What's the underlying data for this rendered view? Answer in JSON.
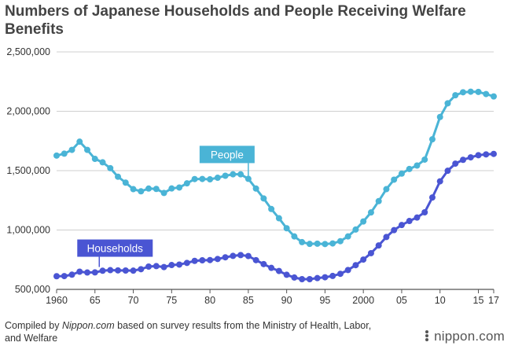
{
  "title": "Numbers of Japanese Households and People Receiving Welfare Benefits",
  "footer": {
    "prefix": "Compiled by ",
    "source": "Nippon.com",
    "suffix": " based on survey results from the Ministry of Health, Labor, and Welfare"
  },
  "logo": "nippon.com",
  "colors": {
    "people": "#4ab4d6",
    "households": "#4a55d3",
    "grid": "#cfcfcf",
    "axis": "#555555"
  },
  "chart_data": {
    "type": "line",
    "title": "Numbers of Japanese Households and People Receiving Welfare Benefits",
    "xlabel": "",
    "ylabel": "",
    "x": [
      1960,
      1961,
      1962,
      1963,
      1964,
      1965,
      1966,
      1967,
      1968,
      1969,
      1970,
      1971,
      1972,
      1973,
      1974,
      1975,
      1976,
      1977,
      1978,
      1979,
      1980,
      1981,
      1982,
      1983,
      1984,
      1985,
      1986,
      1987,
      1988,
      1989,
      1990,
      1991,
      1992,
      1993,
      1994,
      1995,
      1996,
      1997,
      1998,
      1999,
      2000,
      2001,
      2002,
      2003,
      2004,
      2005,
      2006,
      2007,
      2008,
      2009,
      2010,
      2011,
      2012,
      2013,
      2014,
      2015,
      2016,
      2017
    ],
    "xlim": [
      1960,
      2017
    ],
    "ylim": [
      500000,
      2500000
    ],
    "yticks": [
      500000,
      1000000,
      1500000,
      2000000,
      2500000
    ],
    "ytick_labels": [
      "500,000",
      "1,000,000",
      "1,500,000",
      "2,000,000",
      "2,500,000"
    ],
    "xticks": [
      1960,
      1965,
      1970,
      1975,
      1980,
      1985,
      1990,
      1995,
      2000,
      2005,
      2010,
      2015,
      2017
    ],
    "xtick_labels": [
      "1960",
      "65",
      "70",
      "75",
      "80",
      "85",
      "90",
      "95",
      "2000",
      "05",
      "10",
      "15",
      "17"
    ],
    "grid": "horizontal",
    "series": [
      {
        "name": "People",
        "label_position": "above line near 1985",
        "values": [
          1627000,
          1643000,
          1675000,
          1744000,
          1675000,
          1599000,
          1570000,
          1521000,
          1449000,
          1399000,
          1344000,
          1326000,
          1349000,
          1346000,
          1312000,
          1350000,
          1358000,
          1393000,
          1429000,
          1430000,
          1427000,
          1440000,
          1457000,
          1469000,
          1469000,
          1431000,
          1349000,
          1266000,
          1177000,
          1099000,
          1015000,
          946000,
          898000,
          883000,
          885000,
          882000,
          887000,
          906000,
          946000,
          1004000,
          1072000,
          1148000,
          1243000,
          1344000,
          1424000,
          1475000,
          1514000,
          1543000,
          1593000,
          1764000,
          1952000,
          2067000,
          2135000,
          2160000,
          2165000,
          2163000,
          2145000,
          2125000
        ]
      },
      {
        "name": "Households",
        "label_position": "above line near 1966",
        "values": [
          611000,
          612000,
          624000,
          649000,
          642000,
          643000,
          657000,
          662000,
          660000,
          659000,
          658000,
          670000,
          692000,
          696000,
          688000,
          705000,
          709000,
          723000,
          740000,
          745000,
          747000,
          756000,
          770000,
          782000,
          789000,
          781000,
          746000,
          713000,
          681000,
          655000,
          623000,
          600000,
          586000,
          586000,
          595000,
          602000,
          613000,
          631000,
          663000,
          704000,
          751000,
          805000,
          870000,
          941000,
          999000,
          1042000,
          1076000,
          1105000,
          1149000,
          1274000,
          1410000,
          1499000,
          1559000,
          1591000,
          1612000,
          1630000,
          1637000,
          1641000
        ]
      }
    ]
  }
}
